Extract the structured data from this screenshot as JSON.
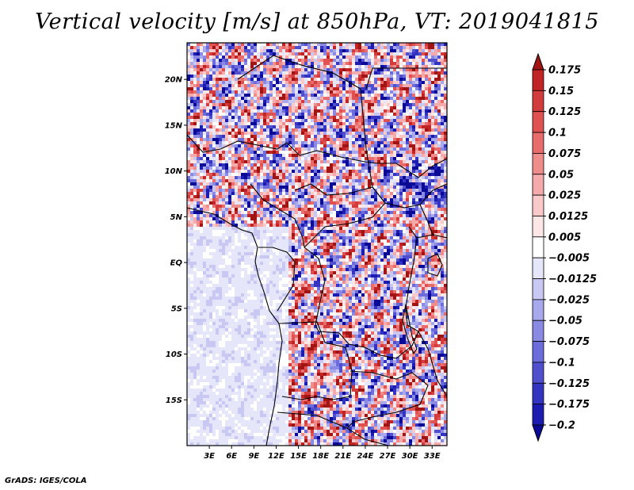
{
  "title": "Vertical velocity [m/s] at 850hPa, VT: 2019041815",
  "footer": "GrADS: IGES/COLA",
  "map": {
    "lon_range": [
      0,
      35
    ],
    "lat_range": [
      -20,
      24
    ],
    "lon_ticks": [
      "3E",
      "6E",
      "9E",
      "12E",
      "15E",
      "18E",
      "21E",
      "24E",
      "27E",
      "30E",
      "33E"
    ],
    "lat_ticks": [
      "20N",
      "15N",
      "10N",
      "5N",
      "EQ",
      "5S",
      "10S",
      "15S"
    ],
    "region": "Central Africa",
    "colors": {
      "frame": "#000000",
      "border": "#000000",
      "background": "#ffffff"
    }
  },
  "colorbar": {
    "levels": [
      "0.175",
      "0.15",
      "0.125",
      "0.1",
      "0.075",
      "0.05",
      "0.025",
      "0.0125",
      "0.005",
      "−0.005",
      "−0.0125",
      "−0.025",
      "−0.05",
      "−0.075",
      "−0.1",
      "−0.125",
      "−0.175",
      "−0.2"
    ],
    "colors": [
      "#a01414",
      "#c02424",
      "#d23c3c",
      "#e05252",
      "#e86c6c",
      "#ef8c8c",
      "#f5abab",
      "#fac9c9",
      "#fde6e6",
      "#ffffff",
      "#e6e6fa",
      "#c8c8f3",
      "#a8a8ec",
      "#8a8ae4",
      "#6c6cdb",
      "#5050cf",
      "#3434c2",
      "#1c1cb0",
      "#0a0a96"
    ]
  }
}
